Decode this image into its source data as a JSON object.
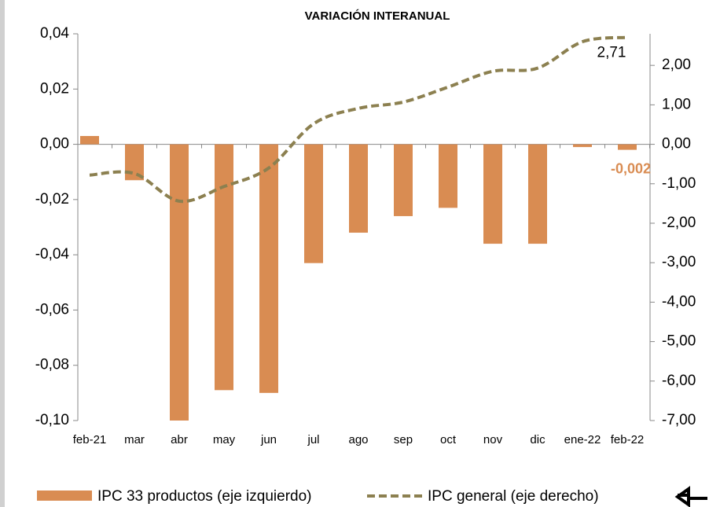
{
  "chart_data": {
    "type": "combo",
    "title": "VARIACIÓN INTERANUAL",
    "categories": [
      "feb-21",
      "mar",
      "abr",
      "may",
      "jun",
      "jul",
      "ago",
      "sep",
      "oct",
      "nov",
      "dic",
      "ene-22",
      "feb-22"
    ],
    "series": [
      {
        "name": "IPC 33 productos (eje izquierdo)",
        "type": "bar",
        "color": "#d98c52",
        "values": [
          0.003,
          -0.013,
          -0.1,
          -0.089,
          -0.09,
          -0.043,
          -0.032,
          -0.026,
          -0.023,
          -0.036,
          -0.036,
          -0.001,
          -0.002
        ],
        "value_labels": [
          null,
          null,
          null,
          null,
          null,
          null,
          null,
          null,
          null,
          null,
          null,
          null,
          "-0,002"
        ]
      },
      {
        "name": "IPC general (eje derecho)",
        "type": "line",
        "axis": "y2",
        "color": "#8c8050",
        "values": [
          -0.78,
          -0.74,
          -1.44,
          -1.07,
          -0.6,
          0.52,
          0.91,
          1.07,
          1.45,
          1.85,
          1.93,
          2.6,
          2.71
        ],
        "value_labels": [
          null,
          null,
          null,
          null,
          null,
          null,
          null,
          null,
          null,
          null,
          null,
          null,
          "2,71"
        ]
      }
    ],
    "ylim": [
      -0.1,
      0.04
    ],
    "yticks": [
      {
        "value": 0.04,
        "label": "0,04"
      },
      {
        "value": 0.02,
        "label": "0,02"
      },
      {
        "value": 0,
        "label": "0,00"
      },
      {
        "value": -0.02,
        "label": "-0,02"
      },
      {
        "value": -0.04,
        "label": "-0,04"
      },
      {
        "value": -0.06,
        "label": "-0,06"
      },
      {
        "value": -0.08,
        "label": "-0,08"
      },
      {
        "value": -0.1,
        "label": "-0,10"
      }
    ],
    "y2lim": [
      -7,
      2.8
    ],
    "y2ticks": [
      {
        "value": 2,
        "label": "2,00"
      },
      {
        "value": 1,
        "label": "1,00"
      },
      {
        "value": 0,
        "label": "0,00"
      },
      {
        "value": -1,
        "label": "-1,00"
      },
      {
        "value": -2,
        "label": "-2,00"
      },
      {
        "value": -3,
        "label": "-3,00"
      },
      {
        "value": -4,
        "label": "-4,00"
      },
      {
        "value": -5,
        "label": "-5,00"
      },
      {
        "value": -6,
        "label": "-6,00"
      },
      {
        "value": -7,
        "label": "-7,00"
      }
    ],
    "legend": "bottom"
  }
}
